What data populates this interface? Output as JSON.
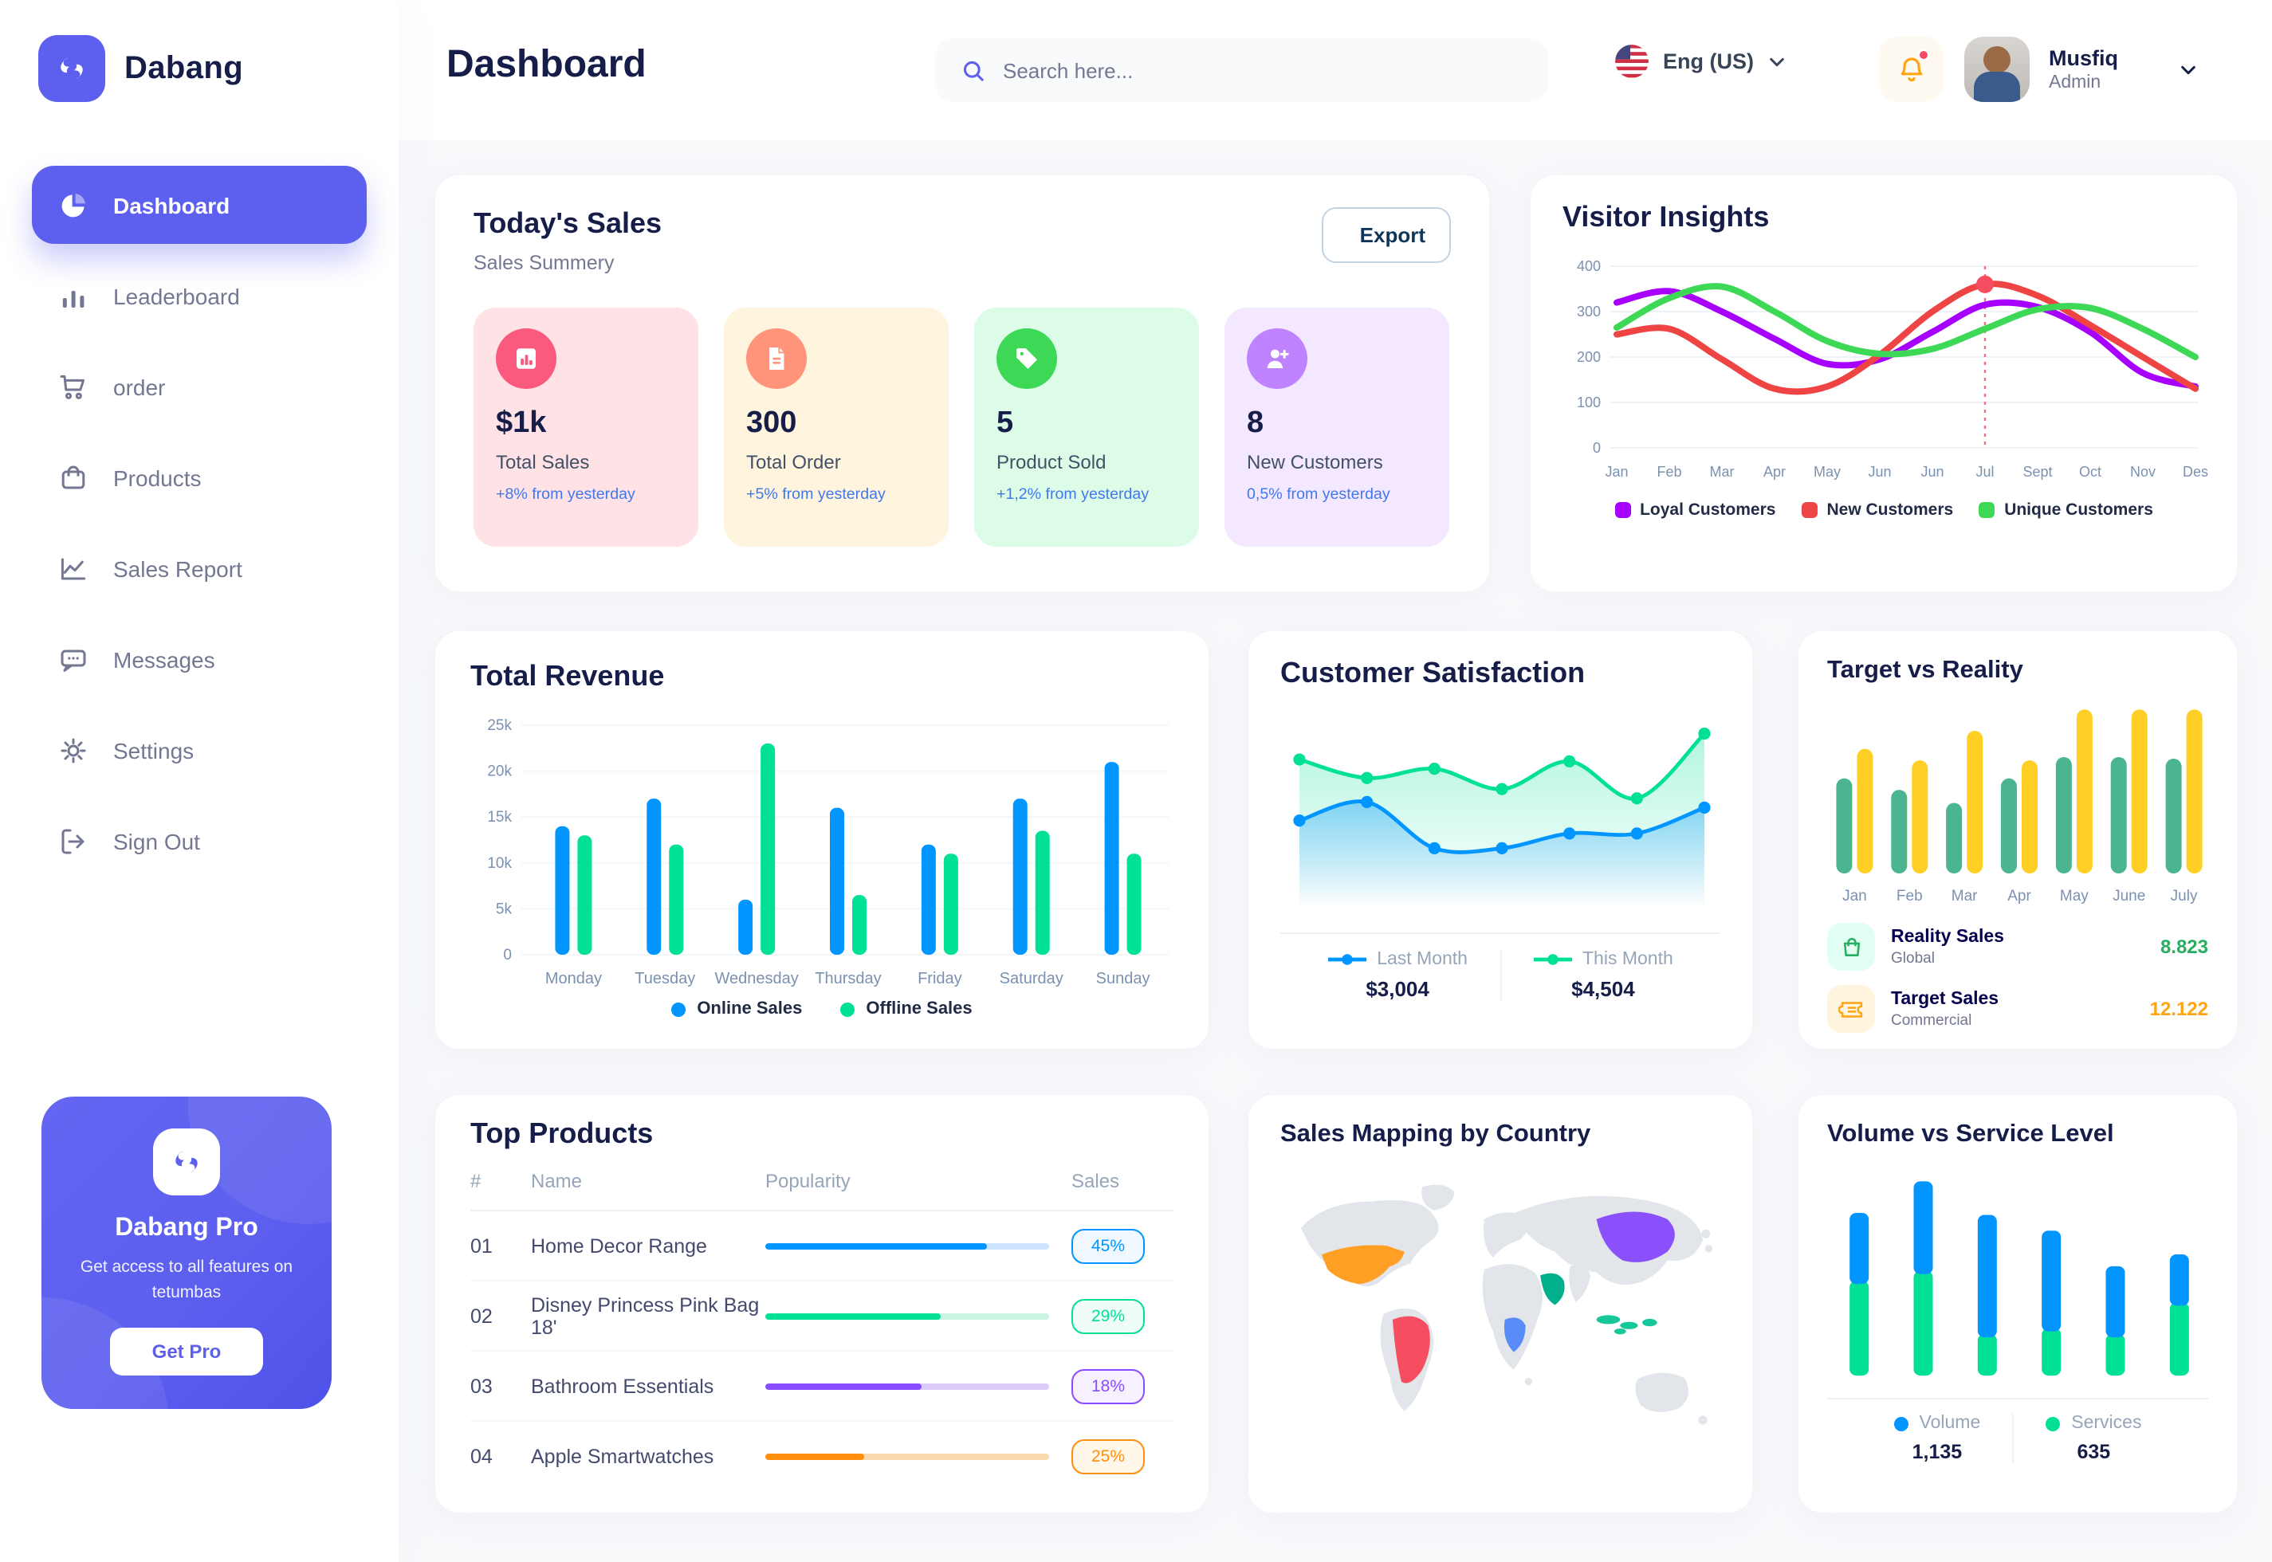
{
  "app": {
    "name": "Dabang",
    "accent": "#5D5FEF"
  },
  "header": {
    "title": "Dashboard",
    "search_placeholder": "Search here...",
    "language": "Eng (US)",
    "user": {
      "name": "Musfiq",
      "role": "Admin"
    }
  },
  "sidebar": {
    "items": [
      {
        "label": "Dashboard",
        "icon": "pie",
        "active": true
      },
      {
        "label": "Leaderboard",
        "icon": "bars",
        "active": false
      },
      {
        "label": "order",
        "icon": "cart",
        "active": false
      },
      {
        "label": "Products",
        "icon": "bag",
        "active": false
      },
      {
        "label": "Sales Report",
        "icon": "chart",
        "active": false
      },
      {
        "label": "Messages",
        "icon": "message",
        "active": false
      },
      {
        "label": "Settings",
        "icon": "gear",
        "active": false
      },
      {
        "label": "Sign Out",
        "icon": "signout",
        "active": false
      }
    ],
    "pro": {
      "title": "Dabang Pro",
      "text": "Get access to all features on tetumbas",
      "button": "Get Pro"
    }
  },
  "today_sales": {
    "title": "Today's Sales",
    "subtitle": "Sales Summery",
    "export_label": "Export",
    "delta_color": "#4079ED",
    "cards": [
      {
        "value": "$1k",
        "label": "Total Sales",
        "delta": "+8% from yesterday",
        "bg": "#FFE2E5",
        "icon_bg": "#FA5A7D",
        "icon": "stat-bar"
      },
      {
        "value": "300",
        "label": "Total Order",
        "delta": "+5% from yesterday",
        "bg": "#FFF4DE",
        "icon_bg": "#FF947A",
        "icon": "stat-file"
      },
      {
        "value": "5",
        "label": "Product Sold",
        "delta": "+1,2% from yesterday",
        "bg": "#DCFCE7",
        "icon_bg": "#3CD856",
        "icon": "stat-tag"
      },
      {
        "value": "8",
        "label": "New Customers",
        "delta": "0,5% from yesterday",
        "bg": "#F3E8FF",
        "icon_bg": "#BF83FF",
        "icon": "stat-user"
      }
    ]
  },
  "chart_data": [
    {
      "id": "visitor_insights",
      "type": "line",
      "title": "Visitor Insights",
      "x": [
        "Jan",
        "Feb",
        "Mar",
        "Apr",
        "May",
        "Jun",
        "Jun",
        "Jul",
        "Sept",
        "Oct",
        "Nov",
        "Des"
      ],
      "ylim": [
        0,
        400
      ],
      "yticks": [
        0,
        100,
        200,
        300,
        400
      ],
      "grid": true,
      "legend_position": "bottom",
      "series": [
        {
          "name": "Loyal Customers",
          "color": "#A700FF",
          "values": [
            320,
            345,
            300,
            240,
            185,
            195,
            255,
            315,
            310,
            255,
            165,
            135
          ]
        },
        {
          "name": "New Customers",
          "color": "#EF4444",
          "values": [
            250,
            262,
            195,
            130,
            135,
            205,
            300,
            360,
            335,
            270,
            200,
            130
          ]
        },
        {
          "name": "Unique Customers",
          "color": "#3CD856",
          "values": [
            265,
            330,
            355,
            300,
            235,
            207,
            218,
            262,
            305,
            308,
            262,
            200
          ]
        }
      ],
      "marker": {
        "series_index": 1,
        "x_index": 7,
        "value": 360,
        "color": "#F64E60"
      }
    },
    {
      "id": "total_revenue",
      "type": "bar",
      "title": "Total Revenue",
      "categories": [
        "Monday",
        "Tuesday",
        "Wednesday",
        "Thursday",
        "Friday",
        "Saturday",
        "Sunday"
      ],
      "ylim": [
        0,
        25000
      ],
      "ytick_labels": [
        "0",
        "5k",
        "10k",
        "15k",
        "20k",
        "25k"
      ],
      "grid": true,
      "legend_position": "bottom",
      "series": [
        {
          "name": "Online Sales",
          "color": "#0095FF",
          "values": [
            14000,
            17000,
            6000,
            16000,
            12000,
            17000,
            21000
          ]
        },
        {
          "name": "Offline Sales",
          "color": "#00E096",
          "values": [
            13000,
            12000,
            23000,
            6500,
            11000,
            13500,
            11000
          ]
        }
      ]
    },
    {
      "id": "customer_satisfaction",
      "type": "area",
      "title": "Customer Satisfaction",
      "ylim": [
        0,
        100
      ],
      "legend_position": "bottom",
      "series": [
        {
          "name": "Last Month",
          "color": "#0095FF",
          "total": "$3,004",
          "values": [
            45,
            55,
            30,
            30,
            38,
            38,
            52
          ]
        },
        {
          "name": "This Month",
          "color": "#00E096",
          "total": "$4,504",
          "values": [
            78,
            68,
            73,
            62,
            77,
            57,
            92
          ]
        }
      ]
    },
    {
      "id": "target_vs_reality",
      "type": "grouped_bar",
      "title": "Target vs Reality",
      "categories": [
        "Jan",
        "Feb",
        "Mar",
        "Apr",
        "May",
        "June",
        "July"
      ],
      "ylim": [
        0,
        105
      ],
      "series": [
        {
          "name": "Reality Sales",
          "subtitle": "Global",
          "color": "#4AB58E",
          "value_label": "8.823",
          "value_color": "#27AE60",
          "icon": "bag",
          "icon_bg": "#E2FFF3",
          "values": [
            58,
            51,
            43,
            58,
            71,
            71,
            70
          ]
        },
        {
          "name": "Target Sales",
          "subtitle": "Commercial",
          "color": "#FFCF26",
          "value_label": "12.122",
          "value_color": "#FFA412",
          "icon": "ticket",
          "icon_bg": "#FFF4DE",
          "values": [
            76,
            69,
            87,
            69,
            100,
            100,
            100
          ]
        }
      ]
    },
    {
      "id": "volume_service",
      "type": "stacked_bar",
      "title": "Volume vs Service Level",
      "ylim": [
        0,
        105
      ],
      "legend_position": "bottom",
      "series": [
        {
          "name": "Volume",
          "color": "#0095FF",
          "total": "1,135",
          "values": [
            36,
            47,
            62,
            51,
            36,
            26
          ]
        },
        {
          "name": "Services",
          "color": "#00E096",
          "total": "635",
          "values": [
            48,
            53,
            21,
            24,
            21,
            37
          ]
        }
      ]
    },
    {
      "id": "sales_map",
      "type": "map",
      "title": "Sales Mapping by Country",
      "base_color": "#E2E5EA",
      "countries": [
        {
          "name": "United States",
          "color": "#FF9F24"
        },
        {
          "name": "Brazil",
          "color": "#F64E60"
        },
        {
          "name": "Saudi Arabia",
          "color": "#00B08C"
        },
        {
          "name": "DR Congo",
          "color": "#5A8CF8"
        },
        {
          "name": "China",
          "color": "#8950FC"
        },
        {
          "name": "Indonesia",
          "color": "#16C79A"
        }
      ]
    },
    {
      "id": "top_products",
      "type": "table",
      "title": "Top Products",
      "columns": [
        "#",
        "Name",
        "Popularity",
        "Sales"
      ],
      "rows": [
        {
          "rank": "01",
          "name": "Home Decor Range",
          "popularity": 78,
          "sales": "45%",
          "color": "#0095FF",
          "track": "#CDE4FF",
          "badge_bg": "#F0F7FF"
        },
        {
          "rank": "02",
          "name": "Disney Princess Pink Bag 18'",
          "popularity": 62,
          "sales": "29%",
          "color": "#00E096",
          "track": "#CBF5E3",
          "badge_bg": "#F0FDF7"
        },
        {
          "rank": "03",
          "name": "Bathroom Essentials",
          "popularity": 55,
          "sales": "18%",
          "color": "#884DFF",
          "track": "#DCCBFA",
          "badge_bg": "#F7F1FF"
        },
        {
          "rank": "04",
          "name": "Apple Smartwatches",
          "popularity": 35,
          "sales": "25%",
          "color": "#FF8F0D",
          "track": "#FBD8AC",
          "badge_bg": "#FFF7EA"
        }
      ]
    }
  ]
}
